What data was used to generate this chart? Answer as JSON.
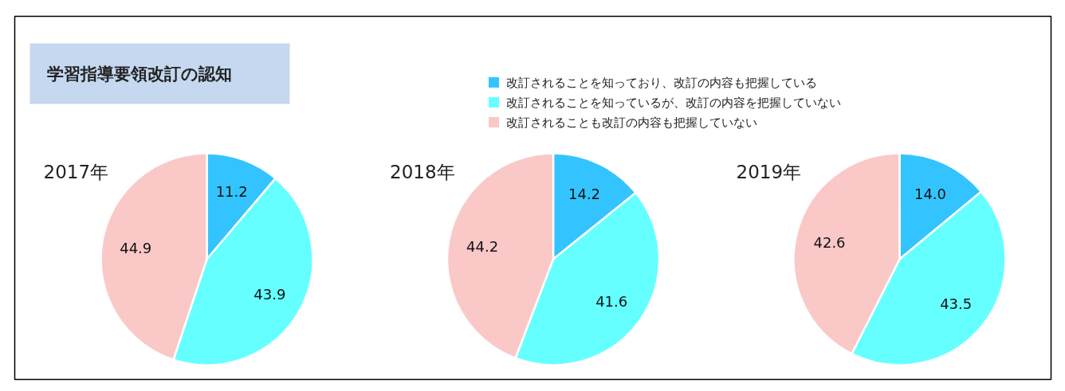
{
  "chart_data": [
    {
      "type": "pie",
      "title": "学習指導要領改訂の認知",
      "subtitle": "2017年",
      "legend": "top",
      "categories": [
        "改訂されることを知っており、改訂の内容も把握している",
        "改訂されることを知っているが、改訂の内容を把握していない",
        "改訂されることも改訂の内容も把握していない"
      ],
      "values": [
        11.2,
        43.9,
        44.9
      ],
      "value_labels": [
        "11.2",
        "43.9",
        "44.9"
      ],
      "colors": [
        "#33c4ff",
        "#66ffff",
        "#fbc8c8"
      ]
    },
    {
      "type": "pie",
      "subtitle": "2018年",
      "categories": [
        null,
        null,
        null
      ],
      "values": [
        14.2,
        41.6,
        44.2
      ],
      "value_labels": [
        "14.2",
        "41.6",
        "44.2"
      ],
      "colors": [
        "#33c4ff",
        "#66ffff",
        "#fbc8c8"
      ]
    },
    {
      "type": "pie",
      "subtitle": "2019年",
      "categories": [
        null,
        null,
        null
      ],
      "values": [
        14.0,
        43.5,
        42.6
      ],
      "value_labels": [
        "14.0",
        "43.5",
        "42.6"
      ],
      "colors": [
        "#33c4ff",
        "#66ffff",
        "#fbc8c8"
      ]
    }
  ]
}
